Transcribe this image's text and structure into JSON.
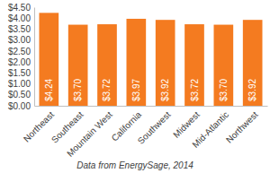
{
  "chart_data": {
    "type": "bar",
    "categories": [
      "Northeast",
      "Southeast",
      "Mountain West",
      "California",
      "Southwest",
      "Midwest",
      "Mid-Atlantic",
      "Northwest"
    ],
    "values": [
      4.24,
      3.7,
      3.72,
      3.97,
      3.92,
      3.72,
      3.7,
      3.92
    ],
    "value_labels": [
      "$4.24",
      "$3.70",
      "$3.72",
      "$3.97",
      "$3.92",
      "$3.72",
      "$3.70",
      "$3.92"
    ],
    "color": "#f47b20",
    "ylim": [
      0,
      4.5
    ],
    "yticks": [
      {
        "value": 0,
        "label": "$0.00"
      },
      {
        "value": 0.5,
        "label": "$0.50"
      },
      {
        "value": 1,
        "label": "$1.00"
      },
      {
        "value": 1.5,
        "label": "$1.50"
      },
      {
        "value": 2,
        "label": "$2.00"
      },
      {
        "value": 2.5,
        "label": "$2.50"
      },
      {
        "value": 3,
        "label": "$3.00"
      },
      {
        "value": 3.5,
        "label": "$3.50"
      },
      {
        "value": 4,
        "label": "$4.00"
      },
      {
        "value": 4.5,
        "label": "$4.50"
      }
    ],
    "grid": false,
    "data_labels": true,
    "annotations": [
      "Data from EnergySage, 2014"
    ]
  }
}
